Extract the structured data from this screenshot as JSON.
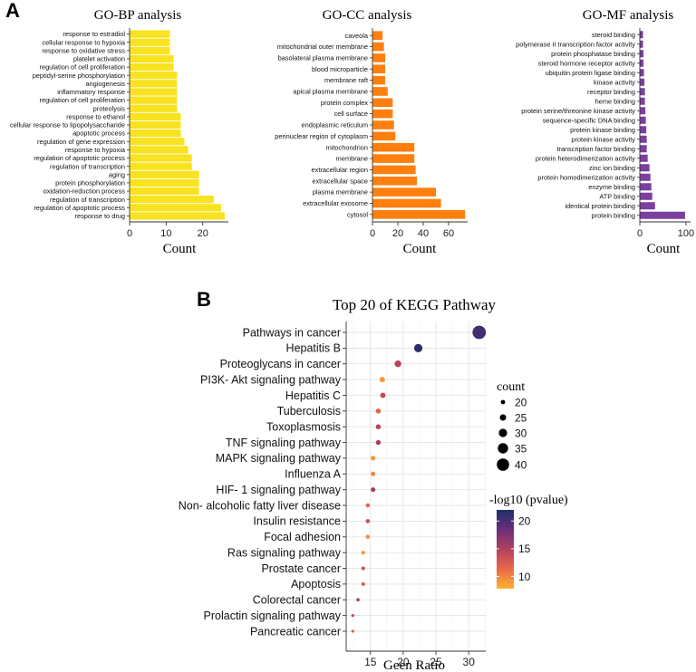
{
  "panel_a_label": "A",
  "panel_b_label": "B",
  "chart_data": [
    {
      "id": "bp",
      "type": "bar",
      "orientation": "horizontal",
      "title": "GO-BP analysis",
      "xlabel": "Count",
      "xlim": [
        0,
        27
      ],
      "xticks": [
        0,
        10,
        20
      ],
      "bar_color": "#F9E21F",
      "categories": [
        "response to estradiol",
        "cellular response to hypoxia",
        "response to oxidative stress",
        "platelet activation",
        "regulation of cell proliferation",
        "peptidyl-serine phosphorylation",
        "angiogenesis",
        "inflammatory response",
        "regulation of cell proliferation",
        "proteolysis",
        "response to ethanol",
        "cellular response to lipopolysaccharide",
        "apoptotic process",
        "regulation of gene expression",
        "response to hypoxia",
        "regulation of apoptotic process",
        "regulation of transcription",
        "aging",
        "protein phosphorylation",
        "oxidation-reduction process",
        "regulation of transcription",
        "regulation of apoptotic process",
        "response to drug"
      ],
      "values": [
        11,
        11,
        11,
        12,
        12,
        13,
        13,
        13,
        13,
        13,
        14,
        14,
        14,
        15,
        16,
        17,
        17,
        19,
        19,
        19,
        23,
        25,
        26
      ]
    },
    {
      "id": "cc",
      "type": "bar",
      "orientation": "horizontal",
      "title": "GO-CC analysis",
      "xlabel": "Count",
      "xlim": [
        0,
        75
      ],
      "xticks": [
        0,
        20,
        40,
        60
      ],
      "bar_color": "#FF7F0E",
      "categories": [
        "caveola",
        "mitochondrial outer membrane",
        "basolateral plasma membrane",
        "blood microparticle",
        "membrane raft",
        "apical plasma membrane",
        "protein complex",
        "cell surface",
        "endoplasmic reticulum",
        "perinuclear region of cytoplasm",
        "mitochondrion",
        "membrane",
        "extracellular region",
        "extracellular space",
        "plasma membrane",
        "extracellular exosome",
        "cytosol"
      ],
      "values": [
        8,
        9,
        10,
        10,
        10,
        12,
        16,
        16,
        17,
        18,
        33,
        33,
        34,
        35,
        50,
        54,
        73
      ]
    },
    {
      "id": "mf",
      "type": "bar",
      "orientation": "horizontal",
      "title": "GO-MF analysis",
      "xlabel": "Count",
      "xlim": [
        0,
        110
      ],
      "xticks": [
        0,
        100
      ],
      "bar_color": "#7B3FA0",
      "categories": [
        "steroid binding",
        "polymerase II transcription factor activity",
        "protein phosphatase binding",
        "steroid hormone receptor activity",
        "ubiquitin protein ligase binding",
        "kinase activity",
        "receptor binding",
        "heme binding",
        "protein serine/threonine kinase activity",
        "sequence-specific DNA binding",
        "protein kinase binding",
        "protein kinase activity",
        "transcription factor binding",
        "protein heterodimerization activity",
        "zinc ion binding",
        "protein homodimerization activity",
        "enzyme binding",
        "ATP binding",
        "identical protein binding",
        "protein binding"
      ],
      "values": [
        7,
        7,
        8,
        8,
        9,
        10,
        11,
        11,
        12,
        13,
        14,
        15,
        15,
        17,
        21,
        23,
        25,
        27,
        33,
        98
      ]
    },
    {
      "id": "kegg",
      "type": "scatter",
      "title": "Top 20 of KEGG Pathway",
      "xlabel": "Geen Ratio",
      "xlim": [
        11.3,
        32.6
      ],
      "xticks": [
        15,
        20,
        25,
        30
      ],
      "grid": true,
      "categories": [
        "Pathways in cancer",
        "Hepatitis B",
        "Proteoglycans in cancer",
        "PI3K- Akt signaling pathway",
        "Hepatitis C",
        "Tuberculosis",
        "Toxoplasmosis",
        "TNF signaling pathway",
        "MAPK signaling pathway",
        "Influenza A",
        "HIF- 1 signaling pathway",
        "Non- alcoholic fatty liver disease",
        "Insulin resistance",
        "Focal adhesion",
        "Ras signaling pathway",
        "Prostate cancer",
        "Apoptosis",
        "Colorectal cancer",
        "Prolactin signaling pathway",
        "Pancreatic cancer"
      ],
      "x": [
        31.6,
        22.3,
        19.2,
        16.8,
        16.9,
        16.2,
        16.2,
        16.2,
        15.4,
        15.4,
        15.4,
        14.6,
        14.6,
        14.6,
        13.9,
        13.9,
        13.9,
        13.1,
        12.3,
        12.3
      ],
      "count": [
        41,
        29,
        25,
        22,
        22,
        21,
        21,
        21,
        20,
        20,
        20,
        19,
        19,
        19,
        18,
        18,
        18,
        17,
        16,
        16
      ],
      "neglog10_pvalue": [
        20.4,
        21.5,
        14.5,
        9.0,
        13.8,
        12.0,
        14.6,
        15.3,
        9.2,
        10.0,
        15.6,
        11.6,
        13.5,
        9.5,
        9.1,
        13.2,
        12.1,
        15.3,
        14.2,
        11.9
      ],
      "size_legend": {
        "title": "count",
        "values": [
          20,
          25,
          30,
          35,
          40
        ]
      },
      "color_legend": {
        "title": "-log10 (pvalue)",
        "ticks": [
          10,
          15,
          20
        ],
        "range": [
          7.8,
          22.0
        ],
        "colors": [
          "#FDB32F",
          "#E86A4A",
          "#B1405F",
          "#6B2F7C",
          "#1E2F66"
        ]
      }
    }
  ]
}
